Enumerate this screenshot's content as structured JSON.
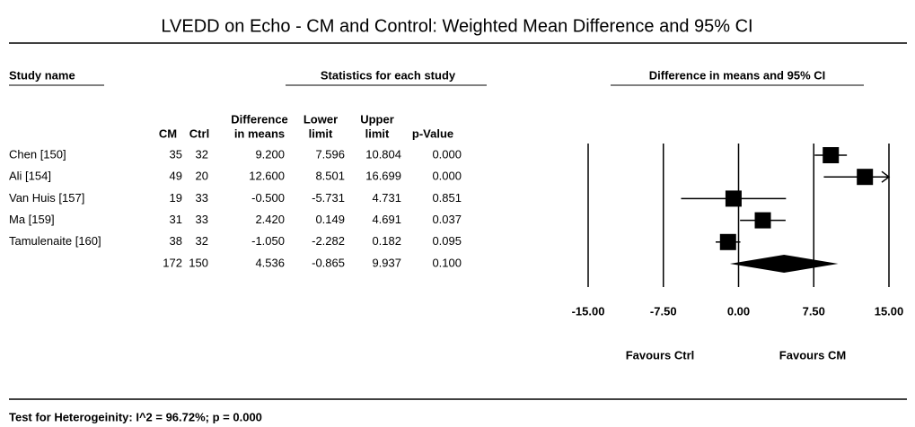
{
  "chart_data": {
    "type": "forest",
    "title": "LVEDD on Echo - CM and Control: Weighted Mean Difference and 95% CI",
    "study_header": "Study name",
    "stats_header": "Statistics for each study",
    "plot_header": "Difference in means and 95% CI",
    "categories": [
      "Chen [150]",
      "Ali [154]",
      "Van Huis [157]",
      "Ma [159]",
      "Tamulenaite [160]",
      null
    ],
    "columns": [
      {
        "header": [
          "CM"
        ],
        "values": [
          35,
          49,
          19,
          31,
          38,
          172
        ]
      },
      {
        "header": [
          "Ctrl"
        ],
        "values": [
          32,
          20,
          33,
          33,
          32,
          150
        ]
      },
      {
        "header": [
          "Difference",
          "in means"
        ],
        "values": [
          9.2,
          12.6,
          -0.5,
          2.42,
          -1.05,
          4.536
        ],
        "value_labels": [
          "9.200",
          "12.600",
          "-0.500",
          "2.420",
          "-1.050",
          "4.536"
        ]
      },
      {
        "header": [
          "Lower",
          "limit"
        ],
        "values": [
          7.596,
          8.501,
          -5.731,
          0.149,
          -2.282,
          -0.865
        ],
        "value_labels": [
          "7.596",
          "8.501",
          "-5.731",
          "0.149",
          "-2.282",
          "-0.865"
        ]
      },
      {
        "header": [
          "Upper",
          "limit"
        ],
        "values": [
          10.804,
          16.699,
          4.731,
          4.691,
          0.182,
          9.937
        ],
        "value_labels": [
          "10.804",
          "16.699",
          "4.731",
          "4.691",
          "0.182",
          "9.937"
        ]
      },
      {
        "header": [
          "p-Value"
        ],
        "values": [
          0,
          0,
          0.851,
          0.037,
          0.095,
          0.1
        ],
        "value_labels": [
          "0.000",
          "0.000",
          "0.851",
          "0.037",
          "0.095",
          "0.100"
        ]
      }
    ],
    "xlim": [
      -15,
      15
    ],
    "xticks": [
      {
        "value": -15,
        "label": "-15.00"
      },
      {
        "value": -7.5,
        "label": "-7.50"
      },
      {
        "value": 0,
        "label": "0.00"
      },
      {
        "value": 7.5,
        "label": "7.50"
      },
      {
        "value": 15,
        "label": "15.00"
      }
    ],
    "grid": true,
    "color": "#000000",
    "favours_left": "Favours Ctrl",
    "favours_right": "Favours CM",
    "footnote": "Test for Heterogeinity: I^2 = 96.72%; p = 0.000"
  }
}
